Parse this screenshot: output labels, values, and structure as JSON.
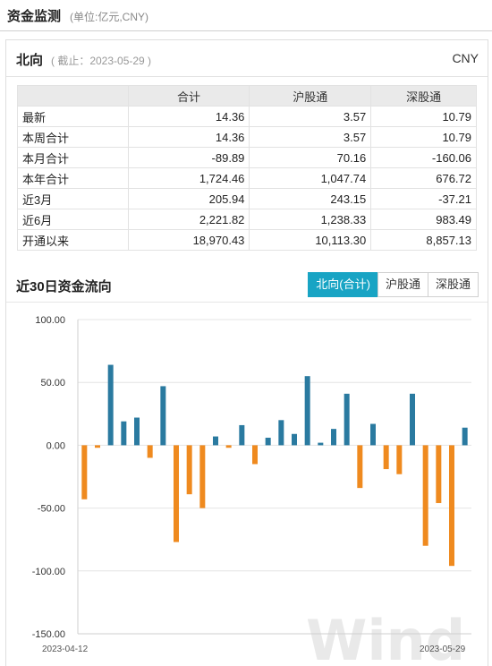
{
  "header": {
    "title": "资金监测",
    "unit": "(单位:亿元,CNY)"
  },
  "panel": {
    "title": "北向",
    "date": "( 截止：2023-05-29 )",
    "currency": "CNY"
  },
  "table": {
    "columns": [
      "",
      "合计",
      "沪股通",
      "深股通"
    ],
    "rows": [
      {
        "label": "最新",
        "values": [
          "14.36",
          "3.57",
          "10.79"
        ]
      },
      {
        "label": "本周合计",
        "values": [
          "14.36",
          "3.57",
          "10.79"
        ]
      },
      {
        "label": "本月合计",
        "values": [
          "-89.89",
          "70.16",
          "-160.06"
        ]
      },
      {
        "label": "本年合计",
        "values": [
          "1,724.46",
          "1,047.74",
          "676.72"
        ]
      },
      {
        "label": "近3月",
        "values": [
          "205.94",
          "243.15",
          "-37.21"
        ]
      },
      {
        "label": "近6月",
        "values": [
          "2,221.82",
          "1,238.33",
          "983.49"
        ]
      },
      {
        "label": "开通以来",
        "values": [
          "18,970.43",
          "10,113.30",
          "8,857.13"
        ]
      }
    ]
  },
  "chart_section": {
    "title": "近30日资金流向",
    "tabs": [
      {
        "label": "北向(合计)",
        "active": true
      },
      {
        "label": "沪股通",
        "active": false
      },
      {
        "label": "深股通",
        "active": false
      }
    ]
  },
  "watermark": "Wind",
  "colors": {
    "positive": "#2a7aa0",
    "negative": "#ef8a1f",
    "accent": "#18a4c4"
  },
  "chart_data": {
    "type": "bar",
    "x_start_label": "2023-04-12",
    "x_end_label": "2023-05-29",
    "values": [
      -43,
      -2,
      64,
      19,
      22,
      -10,
      47,
      -77,
      -39,
      -50,
      7,
      -2,
      16,
      -15,
      6,
      20,
      9,
      55,
      2,
      13,
      41,
      -34,
      17,
      -19,
      -23,
      41,
      -80,
      -46,
      -96,
      14
    ],
    "ylim": [
      -150,
      100
    ],
    "yticks": [
      "100.00",
      "50.00",
      "0.00",
      "-50.00",
      "-100.00",
      "-150.00"
    ],
    "ytick_values": [
      100,
      50,
      0,
      -50,
      -100,
      -150
    ],
    "grid": true
  }
}
